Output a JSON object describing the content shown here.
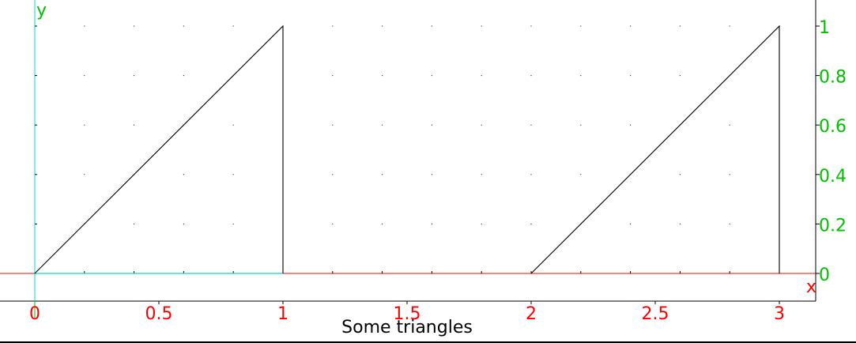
{
  "caption": "Some triangles",
  "chart_data": {
    "type": "line",
    "title": "Some triangles",
    "xlabel": "x",
    "ylabel": "y",
    "xlim": [
      -0.14,
      3.14
    ],
    "ylim": [
      -0.11,
      1.1
    ],
    "x_ticks": [
      {
        "value": 0,
        "label": "0"
      },
      {
        "value": 0.5,
        "label": "0.5"
      },
      {
        "value": 1,
        "label": "1"
      },
      {
        "value": 1.5,
        "label": "1.5"
      },
      {
        "value": 2,
        "label": "2"
      },
      {
        "value": 2.5,
        "label": "2.5"
      },
      {
        "value": 3,
        "label": "3"
      }
    ],
    "y_ticks": [
      {
        "value": 0,
        "label": "0"
      },
      {
        "value": 0.2,
        "label": "0.2"
      },
      {
        "value": 0.4,
        "label": "0.4"
      },
      {
        "value": 0.6,
        "label": "0.6"
      },
      {
        "value": 0.8,
        "label": "0.8"
      },
      {
        "value": 1,
        "label": "1"
      }
    ],
    "grid": "dotted",
    "y_axis_position": "right",
    "series": [
      {
        "x": [
          0,
          1,
          1
        ],
        "y": [
          0,
          1,
          0
        ],
        "color": "#000000"
      },
      {
        "x": [
          2,
          3,
          3
        ],
        "y": [
          0,
          1,
          0
        ],
        "color": "#000000"
      }
    ],
    "highlight": {
      "x": [
        0,
        1
      ],
      "y": [
        0,
        0
      ],
      "color": "#00d8d8"
    },
    "colors": {
      "x_axis": "#ff0000",
      "y_axis": "#00c000",
      "y_marker": "#00d8d8"
    }
  }
}
